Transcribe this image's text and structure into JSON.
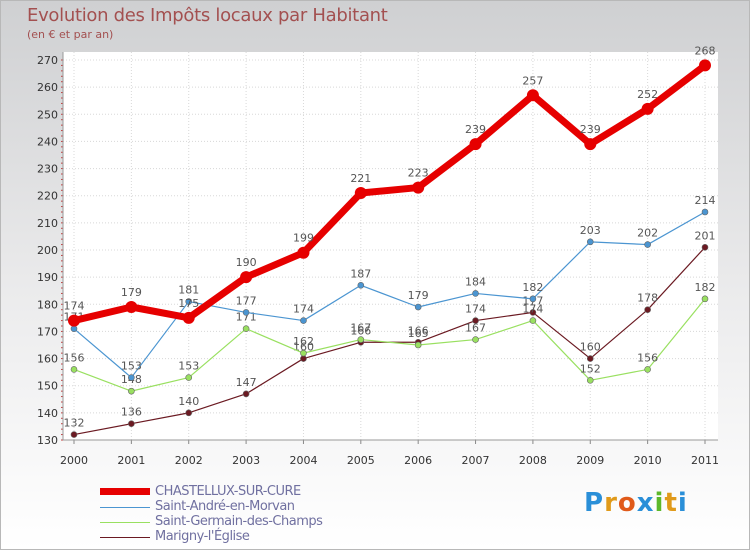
{
  "chart_data": {
    "type": "line",
    "title": "Evolution des Impôts locaux par Habitant",
    "subtitle": "(en € et par an)",
    "x": [
      "2000",
      "2001",
      "2002",
      "2003",
      "2004",
      "2005",
      "2006",
      "2007",
      "2008",
      "2009",
      "2010",
      "2011"
    ],
    "ylim": [
      130,
      270
    ],
    "yticks": [
      130,
      140,
      150,
      160,
      170,
      180,
      190,
      200,
      210,
      220,
      230,
      240,
      250,
      260,
      270
    ],
    "series": [
      {
        "name": "Marigny-l'Église",
        "color": "#6b1a22",
        "values": [
          132,
          136,
          140,
          147,
          160,
          166,
          166,
          174,
          177,
          160,
          178,
          201
        ]
      },
      {
        "name": "Saint-Germain-des-Champs",
        "color": "#99e060",
        "values": [
          156,
          148,
          153,
          171,
          162,
          167,
          165,
          167,
          174,
          152,
          156,
          182
        ]
      },
      {
        "name": "Saint-André-en-Morvan",
        "color": "#4b95d1",
        "values": [
          171,
          153,
          181,
          177,
          174,
          187,
          179,
          184,
          182,
          203,
          202,
          214
        ]
      },
      {
        "name": "CHASTELLUX-SUR-CURE",
        "color": "#e60000",
        "values": [
          174,
          179,
          175,
          190,
          199,
          221,
          223,
          239,
          257,
          239,
          252,
          268
        ]
      }
    ]
  },
  "legend": [
    {
      "name": "CHASTELLUX-SUR-CURE",
      "color": "#e60000"
    },
    {
      "name": "Saint-André-en-Morvan",
      "color": "#4b95d1"
    },
    {
      "name": "Saint-Germain-des-Champs",
      "color": "#99e060"
    },
    {
      "name": "Marigny-l'Église",
      "color": "#6b1a22"
    }
  ],
  "logo": {
    "text": "Proxiti",
    "letters": [
      "P",
      "r",
      "o",
      "x",
      "i",
      "t",
      "i"
    ],
    "colors": [
      "#2a8fd8",
      "#e09a1a",
      "#e05a1a",
      "#2a8fd8",
      "#5cb82a",
      "#e09a1a",
      "#2a8fd8"
    ]
  }
}
